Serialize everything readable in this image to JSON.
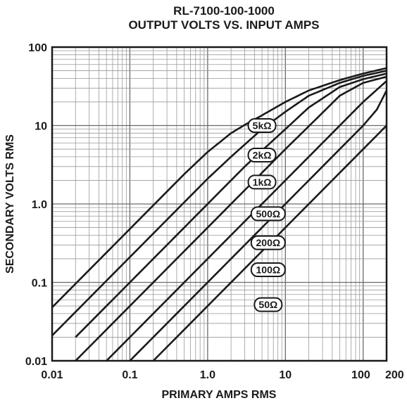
{
  "chart_data": {
    "type": "line",
    "title": "RL-7100-100-1000",
    "subtitle": "OUTPUT VOLTS VS. INPUT AMPS",
    "xlabel": "PRIMARY AMPS RMS",
    "ylabel": "SECONDARY VOLTS RMS",
    "xscale": "log",
    "yscale": "log",
    "xlim": [
      0.01,
      200
    ],
    "ylim": [
      0.01,
      100
    ],
    "grid": true,
    "x_ticks": [
      {
        "value": 0.01,
        "label": "0.01"
      },
      {
        "value": 0.1,
        "label": "0.1"
      },
      {
        "value": 1,
        "label": "1.0"
      },
      {
        "value": 10,
        "label": "10"
      },
      {
        "value": 100,
        "label": "100"
      },
      {
        "value": 200,
        "label": "200"
      }
    ],
    "y_ticks": [
      {
        "value": 0.01,
        "label": "0.01"
      },
      {
        "value": 0.1,
        "label": "0.1"
      },
      {
        "value": 1,
        "label": "1.0"
      },
      {
        "value": 10,
        "label": "10"
      },
      {
        "value": 100,
        "label": "100"
      }
    ],
    "series": [
      {
        "name": "5kΩ",
        "label_at": [
          5,
          10
        ],
        "points": [
          [
            0.01,
            0.048
          ],
          [
            0.1,
            0.48
          ],
          [
            0.5,
            2.4
          ],
          [
            1,
            4.6
          ],
          [
            2,
            8.0
          ],
          [
            3,
            10.2
          ],
          [
            5,
            13.5
          ],
          [
            10,
            20
          ],
          [
            20,
            28
          ],
          [
            50,
            38
          ],
          [
            100,
            46
          ],
          [
            200,
            54
          ]
        ]
      },
      {
        "name": "2kΩ",
        "label_at": [
          5,
          4.2
        ],
        "points": [
          [
            0.01,
            0.021
          ],
          [
            0.1,
            0.21
          ],
          [
            1,
            2.1
          ],
          [
            2,
            4.0
          ],
          [
            5,
            9.0
          ],
          [
            10,
            15
          ],
          [
            20,
            24
          ],
          [
            50,
            35
          ],
          [
            100,
            43
          ],
          [
            200,
            50
          ]
        ]
      },
      {
        "name": "1kΩ",
        "label_at": [
          5,
          1.9
        ],
        "points": [
          [
            0.02,
            0.02
          ],
          [
            0.1,
            0.1
          ],
          [
            1,
            1.0
          ],
          [
            3,
            3.0
          ],
          [
            5,
            4.8
          ],
          [
            10,
            9.0
          ],
          [
            20,
            17
          ],
          [
            50,
            31
          ],
          [
            100,
            39
          ],
          [
            200,
            46
          ]
        ]
      },
      {
        "name": "500Ω",
        "label_at": [
          6,
          0.75
        ],
        "points": [
          [
            0.02,
            0.01
          ],
          [
            0.1,
            0.05
          ],
          [
            1,
            0.5
          ],
          [
            5,
            2.5
          ],
          [
            10,
            5.0
          ],
          [
            20,
            9.8
          ],
          [
            50,
            24
          ],
          [
            100,
            35
          ],
          [
            200,
            42
          ]
        ]
      },
      {
        "name": "200Ω",
        "label_at": [
          6,
          0.32
        ],
        "points": [
          [
            0.05,
            0.01
          ],
          [
            1,
            0.2
          ],
          [
            10,
            2.0
          ],
          [
            20,
            4.0
          ],
          [
            50,
            10
          ],
          [
            100,
            20
          ],
          [
            200,
            37
          ]
        ]
      },
      {
        "name": "100Ω",
        "label_at": [
          6,
          0.145
        ],
        "points": [
          [
            0.1,
            0.01
          ],
          [
            1,
            0.1
          ],
          [
            10,
            1.0
          ],
          [
            50,
            5.0
          ],
          [
            100,
            10
          ],
          [
            150,
            16
          ],
          [
            200,
            28
          ]
        ]
      },
      {
        "name": "50Ω",
        "label_at": [
          6,
          0.052
        ],
        "points": [
          [
            0.2,
            0.01
          ],
          [
            1,
            0.05
          ],
          [
            10,
            0.5
          ],
          [
            100,
            5.0
          ],
          [
            200,
            10
          ]
        ]
      }
    ]
  }
}
